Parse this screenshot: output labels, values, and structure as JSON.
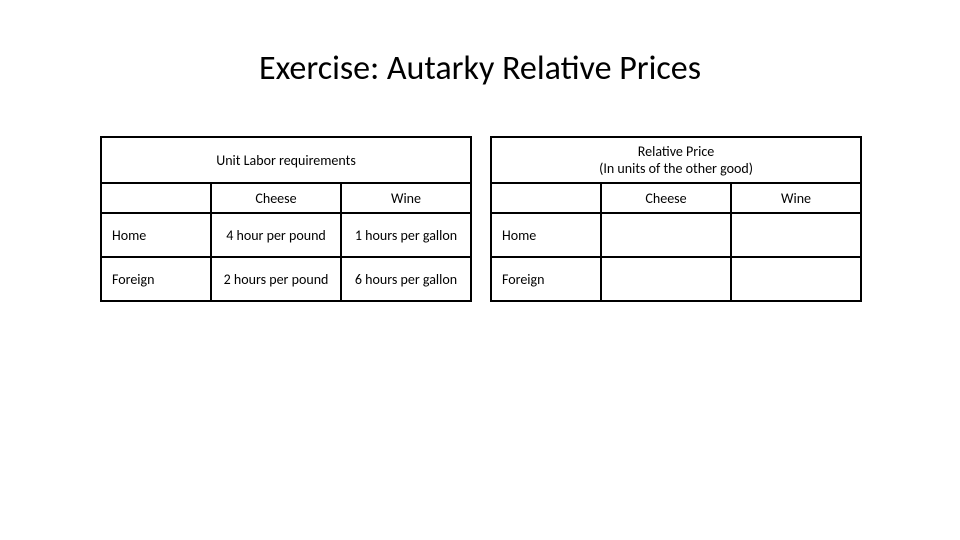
{
  "title": "Exercise: Autarky Relative Prices",
  "leftTable": {
    "header": "Unit Labor requirements",
    "col1": "Cheese",
    "col2": "Wine",
    "rows": [
      {
        "label": "Home",
        "cheese": "4 hour per pound",
        "wine": "1 hours per gallon"
      },
      {
        "label": "Foreign",
        "cheese": "2 hours per pound",
        "wine": "6 hours per gallon"
      }
    ]
  },
  "rightTable": {
    "headerLine1": "Relative Price",
    "headerLine2": "(In units of the other good)",
    "col1": "Cheese",
    "col2": "Wine",
    "rows": [
      {
        "label": "Home",
        "cheese": "",
        "wine": ""
      },
      {
        "label": "Foreign",
        "cheese": "",
        "wine": ""
      }
    ]
  },
  "style": {
    "background_color": "#ffffff",
    "text_color": "#000000",
    "border_color": "#000000",
    "title_fontsize": 34,
    "cell_fontsize": 14,
    "font_family": "Calibri"
  }
}
